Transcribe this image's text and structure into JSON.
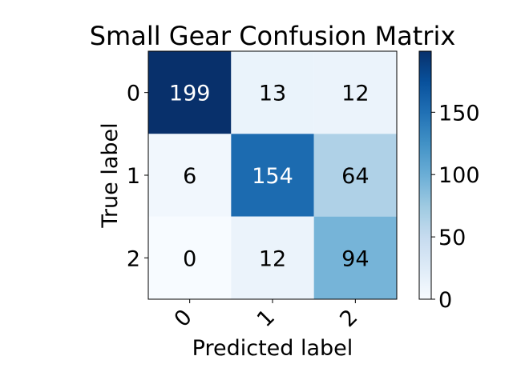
{
  "chart_data": {
    "type": "heatmap",
    "title": "Small Gear Confusion Matrix",
    "xlabel": "Predicted label",
    "ylabel": "True label",
    "x_categories": [
      "0",
      "1",
      "2"
    ],
    "y_categories": [
      "0",
      "1",
      "2"
    ],
    "matrix": [
      [
        199,
        13,
        12
      ],
      [
        6,
        154,
        64
      ],
      [
        0,
        12,
        94
      ]
    ],
    "colormap": "Blues",
    "colorbar": {
      "min": 0,
      "max": 199,
      "ticks": [
        0,
        50,
        100,
        150
      ]
    },
    "grid": false
  }
}
